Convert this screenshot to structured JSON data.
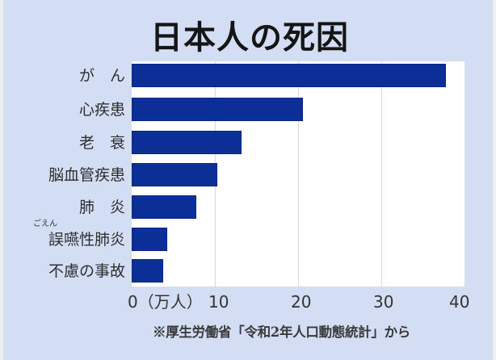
{
  "chart_data": {
    "type": "bar",
    "orientation": "horizontal",
    "title": "日本人の死因",
    "categories": [
      "がん",
      "心疾患",
      "老衰",
      "脳血管疾患",
      "肺炎",
      "誤嚥性肺炎",
      "不慮の事故"
    ],
    "display_labels": [
      "が　ん",
      "心疾患",
      "老　衰",
      "脳血管疾患",
      "肺　炎",
      "誤嚥性肺炎",
      "不慮の事故"
    ],
    "ruby": {
      "category": "誤嚥性肺炎",
      "reading": "ごえん"
    },
    "values": [
      37.8,
      20.6,
      13.2,
      10.3,
      7.8,
      4.3,
      3.8
    ],
    "unit": "万人",
    "xlabel": "（万人）",
    "ylabel": "",
    "xlim": [
      0,
      40
    ],
    "xticks": [
      0,
      10,
      20,
      30,
      40
    ],
    "xtick_labels": [
      "0（万人）",
      "10",
      "20",
      "30",
      "40"
    ],
    "grid": true,
    "legend": null,
    "bar_color": "#0c2f97",
    "source_note": "※厚生労働省「令和2年人口動態統計」から"
  },
  "colors": {
    "background": "#d3ddf3",
    "plot_background": "#ffffff",
    "bar": "#0c2f97",
    "gridline": "#d6dbe8",
    "text": "#2f2f2f"
  }
}
